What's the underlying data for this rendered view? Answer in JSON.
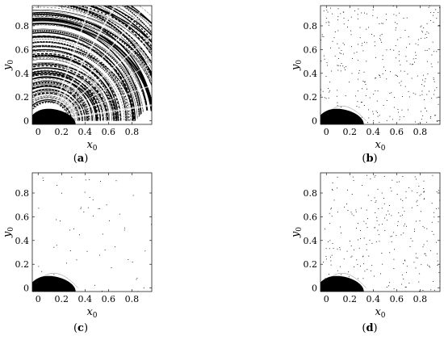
{
  "chart_data": [
    {
      "type": "scatter",
      "panel_label": "(a)",
      "panel_letter": "a",
      "xlabel": "x",
      "xlabel_sub": "0",
      "ylabel": "y",
      "ylabel_sub": "0",
      "xlim": [
        -0.05,
        0.97
      ],
      "ylim": [
        -0.03,
        0.97
      ],
      "xticks": [
        "0",
        "0.2",
        "0.4",
        "0.6",
        "0.8"
      ],
      "yticks": [
        "0",
        "0.2",
        "0.4",
        "0.6",
        "0.8"
      ],
      "pattern": "dense concentric bands with black region at origin",
      "dot_color": "#000000"
    },
    {
      "type": "scatter",
      "panel_label": "(b)",
      "panel_letter": "b",
      "xlabel": "x",
      "xlabel_sub": "0",
      "ylabel": "y",
      "ylabel_sub": "0",
      "xlim": [
        -0.05,
        0.97
      ],
      "ylim": [
        -0.03,
        0.97
      ],
      "xticks": [
        "0",
        "0.2",
        "0.4",
        "0.6",
        "0.8"
      ],
      "yticks": [
        "0",
        "0.2",
        "0.4",
        "0.6",
        "0.8"
      ],
      "pattern": "sparse scattered points with black region at origin",
      "dot_color": "#000000"
    },
    {
      "type": "scatter",
      "panel_label": "(c)",
      "panel_letter": "c",
      "xlabel": "x",
      "xlabel_sub": "0",
      "ylabel": "y",
      "ylabel_sub": "0",
      "xlim": [
        -0.05,
        0.97
      ],
      "ylim": [
        -0.03,
        0.97
      ],
      "xticks": [
        "0",
        "0.2",
        "0.4",
        "0.6",
        "0.8"
      ],
      "yticks": [
        "0",
        "0.2",
        "0.4",
        "0.6",
        "0.8"
      ],
      "pattern": "very sparse scattered points with black region at origin",
      "dot_color": "#000000"
    },
    {
      "type": "scatter",
      "panel_label": "(d)",
      "panel_letter": "d",
      "xlabel": "x",
      "xlabel_sub": "0",
      "ylabel": "y",
      "ylabel_sub": "0",
      "xlim": [
        -0.05,
        0.97
      ],
      "ylim": [
        -0.03,
        0.97
      ],
      "xticks": [
        "0",
        "0.2",
        "0.4",
        "0.6",
        "0.8"
      ],
      "yticks": [
        "0",
        "0.2",
        "0.4",
        "0.6",
        "0.8"
      ],
      "pattern": "sparse scattered points with black region at origin",
      "dot_color": "#000000"
    }
  ]
}
